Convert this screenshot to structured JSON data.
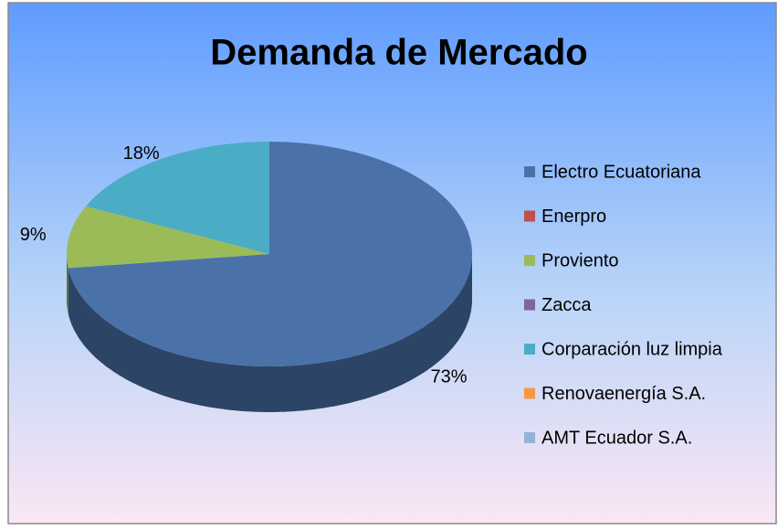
{
  "chart_data": {
    "type": "pie",
    "title": "Demanda de Mercado",
    "categories": [
      "Electro Ecuatoriana",
      "Enerpro",
      "Proviento",
      "Zacca",
      "Corparación luz limpia",
      "Renovaenergía S.A.",
      "AMT Ecuador S.A."
    ],
    "values": [
      73,
      0,
      9,
      0,
      18,
      0,
      0
    ],
    "value_labels": [
      "73%",
      null,
      "9%",
      null,
      "18%",
      null,
      null
    ],
    "colors": [
      "#4a72a8",
      "#c0504d",
      "#9bbb59",
      "#8064a2",
      "#4bacc6",
      "#f79646",
      "#95b3d7"
    ],
    "legend": "right"
  }
}
